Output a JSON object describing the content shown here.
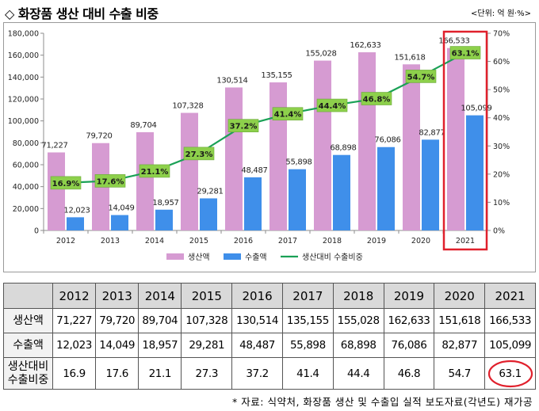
{
  "title": "◇ 화장품 생산 대비 수출 비중",
  "unit": "<단위: 억 원·%>",
  "chart_data": {
    "type": "bar",
    "categories": [
      "2012",
      "2013",
      "2014",
      "2015",
      "2016",
      "2017",
      "2018",
      "2019",
      "2020",
      "2021"
    ],
    "series": [
      {
        "name": "생산액",
        "kind": "bar",
        "axis": "left",
        "color": "#d69bd2",
        "values": [
          71227,
          79720,
          89704,
          107328,
          130514,
          135155,
          155028,
          162633,
          151618,
          166533
        ],
        "labels": [
          "71,227",
          "79,720",
          "89,704",
          "107,328",
          "130,514",
          "135,155",
          "155,028",
          "162,633",
          "151,618",
          "166,533"
        ]
      },
      {
        "name": "수출액",
        "kind": "bar",
        "axis": "left",
        "color": "#3f8fea",
        "values": [
          12023,
          14049,
          18957,
          29281,
          48487,
          55898,
          68898,
          76086,
          82877,
          105099
        ],
        "labels": [
          "12,023",
          "14,049",
          "18,957",
          "29,281",
          "48,487",
          "55,898",
          "68,898",
          "76,086",
          "82,877",
          "105,099"
        ]
      },
      {
        "name": "생산대비 수출비중",
        "kind": "line",
        "axis": "right",
        "color": "#1aa156",
        "values": [
          16.9,
          17.6,
          21.1,
          27.3,
          37.2,
          41.4,
          44.4,
          46.8,
          54.7,
          63.1
        ],
        "labels": [
          "16.9%",
          "17.6%",
          "21.1%",
          "27.3%",
          "37.2%",
          "41.4%",
          "44.4%",
          "46.8%",
          "54.7%",
          "63.1%"
        ]
      }
    ],
    "y_left": {
      "min": 0,
      "max": 180000,
      "ticks": [
        "0",
        "20,000",
        "40,000",
        "60,000",
        "80,000",
        "100,000",
        "120,000",
        "140,000",
        "160,000",
        "180,000"
      ]
    },
    "y_right": {
      "min": 0,
      "max": 70,
      "ticks": [
        "0%",
        "10%",
        "20%",
        "30%",
        "40%",
        "50%",
        "60%",
        "70%"
      ]
    },
    "legend_placement": "bottom",
    "highlight": {
      "category": "2021",
      "color": "#e0202c"
    }
  },
  "table": {
    "years": [
      "2012",
      "2013",
      "2014",
      "2015",
      "2016",
      "2017",
      "2018",
      "2019",
      "2020",
      "2021"
    ],
    "rows": [
      {
        "label": "생산액",
        "values": [
          "71,227",
          "79,720",
          "89,704",
          "107,328",
          "130,514",
          "135,155",
          "155,028",
          "162,633",
          "151,618",
          "166,533"
        ]
      },
      {
        "label": "수출액",
        "values": [
          "12,023",
          "14,049",
          "18,957",
          "29,281",
          "48,487",
          "55,898",
          "68,898",
          "76,086",
          "82,877",
          "105,099"
        ]
      },
      {
        "label": "생산대비 수출비중",
        "label_line1": "생산대비",
        "label_line2": "수출비중",
        "values": [
          "16.9",
          "17.6",
          "21.1",
          "27.3",
          "37.2",
          "41.4",
          "44.4",
          "46.8",
          "54.7",
          "63.1"
        ]
      }
    ]
  },
  "source": "* 자료: 식약처, 화장품 생산 및 수출입 실적 보도자료(각년도) 재가공"
}
